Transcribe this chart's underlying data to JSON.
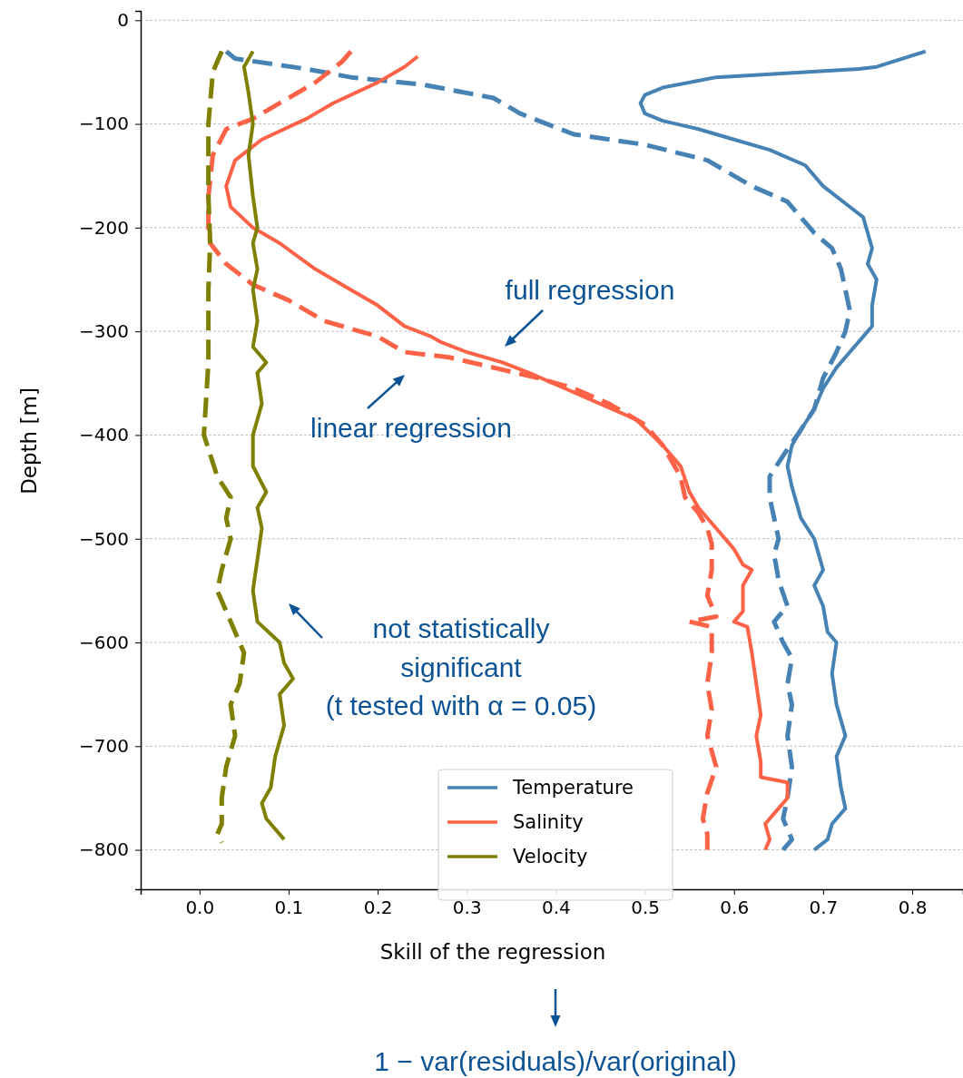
{
  "chart_data": {
    "type": "line",
    "xlabel": "Skill of the regression",
    "ylabel": "Depth [m]",
    "xlim": [
      -0.066,
      0.857
    ],
    "ylim": [
      -838,
      9
    ],
    "xticks": [
      {
        "value": 0,
        "label": "0.0"
      },
      {
        "value": 0.1,
        "label": "0.1"
      },
      {
        "value": 0.2,
        "label": "0.2"
      },
      {
        "value": 0.3,
        "label": "0.3"
      },
      {
        "value": 0.4,
        "label": "0.4"
      },
      {
        "value": 0.5,
        "label": "0.5"
      },
      {
        "value": 0.6,
        "label": "0.6"
      },
      {
        "value": 0.7,
        "label": "0.7"
      },
      {
        "value": 0.8,
        "label": "0.8"
      }
    ],
    "yticks": [
      0,
      {
        "value": -100,
        "label": "−100"
      },
      {
        "value": -200,
        "label": "−200"
      },
      {
        "value": -300,
        "label": "−300"
      },
      {
        "value": -400,
        "label": "−400"
      },
      {
        "value": -500,
        "label": "−500"
      },
      {
        "value": -600,
        "label": "−600"
      },
      {
        "value": -700,
        "label": "−700"
      },
      {
        "value": -800,
        "label": "−800"
      }
    ],
    "grid": "y",
    "legend": "bottom",
    "annotations": [
      "full regression",
      "linear regression",
      "not statistically significant (t tested with α = 0.05)",
      "1 − var(residuals)/var(original)"
    ],
    "series": [
      {
        "name": "Temperature",
        "color": "#4682b4",
        "line_style": "solid",
        "x": [
          0.815,
          0.76,
          0.74,
          0.58,
          0.52,
          0.5,
          0.495,
          0.5,
          0.52,
          0.56,
          0.6,
          0.64,
          0.68,
          0.7,
          0.73,
          0.745,
          0.75,
          0.755,
          0.75,
          0.76,
          0.755,
          0.755,
          0.745,
          0.73,
          0.715,
          0.7,
          0.69,
          0.675,
          0.665,
          0.66,
          0.665,
          0.675,
          0.69,
          0.695,
          0.7,
          0.69,
          0.7,
          0.705,
          0.715,
          0.71,
          0.715,
          0.725,
          0.715,
          0.72,
          0.725,
          0.71,
          0.705,
          0.69
        ],
        "values": [
          -30,
          -45,
          -47,
          -55,
          -65,
          -72,
          -80,
          -90,
          -97,
          -105,
          -115,
          -125,
          -140,
          -160,
          -180,
          -190,
          -205,
          -220,
          -235,
          -250,
          -275,
          -295,
          -305,
          -320,
          -335,
          -355,
          -375,
          -395,
          -410,
          -430,
          -450,
          -480,
          -500,
          -515,
          -530,
          -545,
          -565,
          -590,
          -600,
          -630,
          -660,
          -690,
          -710,
          -740,
          -760,
          -775,
          -790,
          -800
        ]
      },
      {
        "color": "#4682b4",
        "line_style": "dashed",
        "x": [
          0.03,
          0.04,
          0.08,
          0.12,
          0.17,
          0.25,
          0.33,
          0.36,
          0.42,
          0.5,
          0.57,
          0.62,
          0.66,
          0.69,
          0.71,
          0.72,
          0.725,
          0.73,
          0.725,
          0.715,
          0.7,
          0.69,
          0.675,
          0.655,
          0.64,
          0.64,
          0.645,
          0.65,
          0.645,
          0.65,
          0.66,
          0.645,
          0.655,
          0.665,
          0.66,
          0.665,
          0.66,
          0.665,
          0.66,
          0.655,
          0.665,
          0.655
        ],
        "values": [
          -30,
          -37,
          -42,
          -47,
          -55,
          -62,
          -75,
          -90,
          -110,
          -120,
          -135,
          -160,
          -175,
          -205,
          -220,
          -240,
          -260,
          -280,
          -300,
          -320,
          -345,
          -375,
          -395,
          -420,
          -440,
          -460,
          -480,
          -500,
          -515,
          -540,
          -565,
          -580,
          -600,
          -615,
          -640,
          -660,
          -690,
          -720,
          -750,
          -770,
          -790,
          -800
        ]
      },
      {
        "name": "Salinity",
        "color": "#ff6347",
        "line_style": "solid",
        "x": [
          0.245,
          0.23,
          0.2,
          0.15,
          0.12,
          0.07,
          0.04,
          0.03,
          0.035,
          0.06,
          0.09,
          0.13,
          0.16,
          0.2,
          0.23,
          0.26,
          0.27,
          0.3,
          0.34,
          0.37,
          0.41,
          0.45,
          0.49,
          0.52,
          0.54,
          0.55,
          0.56,
          0.58,
          0.6,
          0.61,
          0.62,
          0.61,
          0.61,
          0.6,
          0.615,
          0.62,
          0.625,
          0.63,
          0.625,
          0.63,
          0.63,
          0.66,
          0.66,
          0.65,
          0.635,
          0.64,
          0.635
        ],
        "values": [
          -35,
          -45,
          -60,
          -80,
          -95,
          -115,
          -135,
          -160,
          -180,
          -200,
          -215,
          -240,
          -255,
          -275,
          -295,
          -305,
          -310,
          -320,
          -330,
          -340,
          -355,
          -370,
          -385,
          -410,
          -430,
          -455,
          -470,
          -490,
          -510,
          -525,
          -530,
          -545,
          -570,
          -580,
          -585,
          -610,
          -640,
          -670,
          -690,
          -715,
          -730,
          -735,
          -750,
          -760,
          -775,
          -790,
          -800
        ]
      },
      {
        "color": "#ff6347",
        "line_style": "dashed",
        "x": [
          0.17,
          0.16,
          0.13,
          0.09,
          0.06,
          0.03,
          0.015,
          0.01,
          0.01,
          0.012,
          0.03,
          0.06,
          0.1,
          0.14,
          0.2,
          0.23,
          0.28,
          0.33,
          0.38,
          0.42,
          0.46,
          0.5,
          0.52,
          0.54,
          0.545,
          0.56,
          0.57,
          0.575,
          0.575,
          0.57,
          0.58,
          0.55,
          0.575,
          0.575,
          0.57,
          0.575,
          0.57,
          0.58,
          0.57,
          0.565,
          0.57,
          0.57
        ],
        "values": [
          -30,
          -40,
          -60,
          -80,
          -95,
          -105,
          -130,
          -170,
          -200,
          -215,
          -235,
          -255,
          -270,
          -290,
          -305,
          -320,
          -325,
          -335,
          -345,
          -355,
          -370,
          -390,
          -410,
          -440,
          -460,
          -475,
          -490,
          -505,
          -530,
          -555,
          -575,
          -580,
          -585,
          -610,
          -640,
          -665,
          -690,
          -720,
          -745,
          -770,
          -785,
          -800
        ]
      },
      {
        "name": "Velocity",
        "color": "#808000",
        "line_style": "solid",
        "x": [
          0.06,
          0.05,
          0.055,
          0.06,
          0.055,
          0.06,
          0.065,
          0.06,
          0.065,
          0.06,
          0.065,
          0.06,
          0.075,
          0.065,
          0.07,
          0.06,
          0.06,
          0.075,
          0.065,
          0.07,
          0.065,
          0.06,
          0.065,
          0.09,
          0.095,
          0.105,
          0.09,
          0.095,
          0.085,
          0.08,
          0.07,
          0.075,
          0.095
        ],
        "values": [
          -30,
          -45,
          -70,
          -100,
          -130,
          -170,
          -200,
          -215,
          -240,
          -260,
          -290,
          -315,
          -330,
          -340,
          -370,
          -400,
          -430,
          -455,
          -470,
          -490,
          -520,
          -550,
          -580,
          -600,
          -620,
          -635,
          -650,
          -680,
          -710,
          -740,
          -755,
          -770,
          -790
        ]
      },
      {
        "color": "#808000",
        "line_style": "dashed",
        "x": [
          0.025,
          0.015,
          0.01,
          0.01,
          0.012,
          0.01,
          0.01,
          0.005,
          0.02,
          0.035,
          0.03,
          0.035,
          0.025,
          0.02,
          0.03,
          0.04,
          0.05,
          0.045,
          0.035,
          0.04,
          0.03,
          0.025,
          0.025,
          0.02,
          0.025
        ],
        "values": [
          -30,
          -50,
          -100,
          -170,
          -215,
          -260,
          -330,
          -400,
          -440,
          -460,
          -480,
          -500,
          -530,
          -550,
          -570,
          -590,
          -610,
          -640,
          -660,
          -690,
          -720,
          -750,
          -775,
          -785,
          -793
        ]
      }
    ]
  }
}
